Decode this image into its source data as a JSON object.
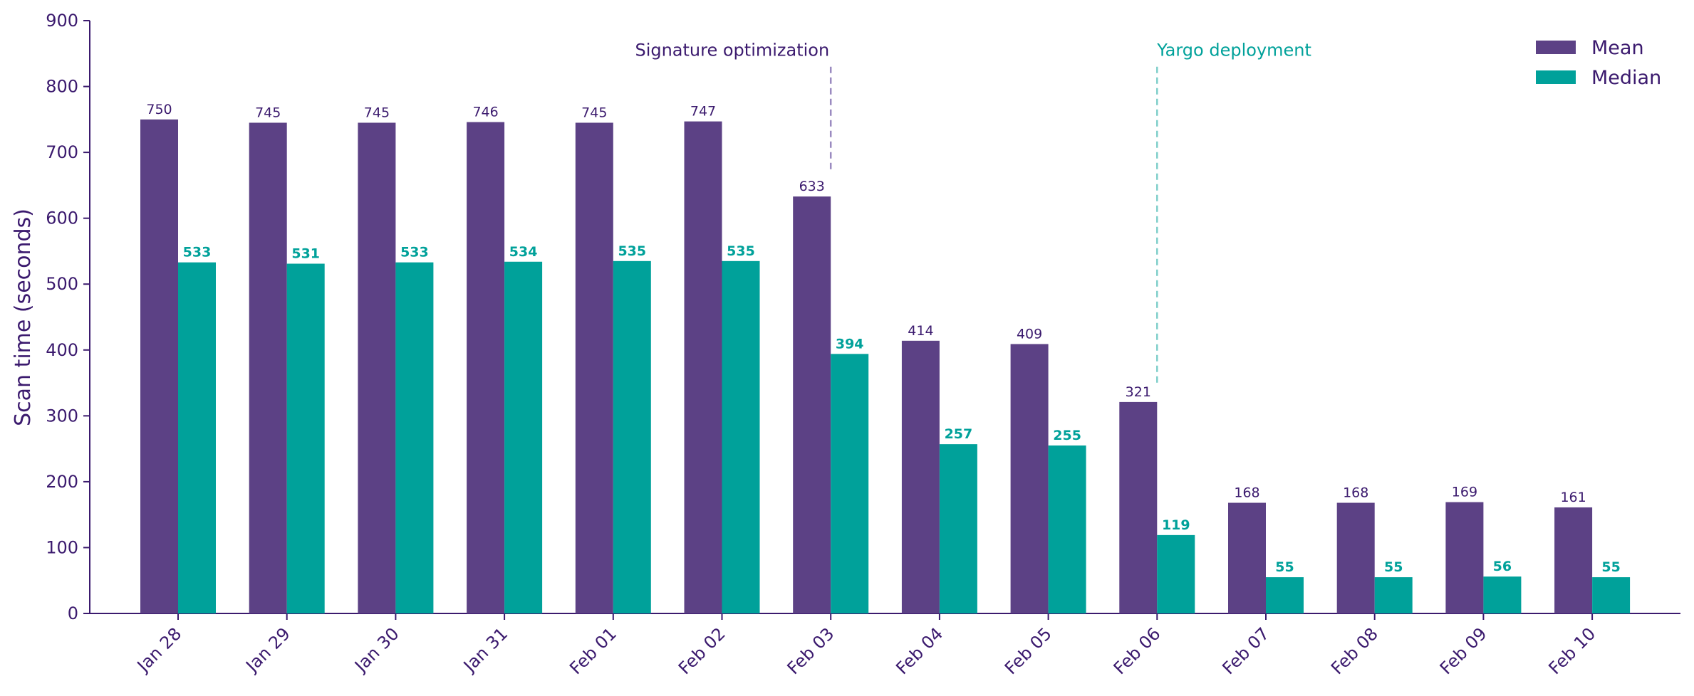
{
  "chart_data": {
    "type": "bar",
    "title": "",
    "xlabel": "",
    "ylabel": "Scan time (seconds)",
    "ylim": [
      0,
      900
    ],
    "yticks": [
      0,
      100,
      200,
      300,
      400,
      500,
      600,
      700,
      800,
      900
    ],
    "grid": false,
    "legend_position": "top-right",
    "categories": [
      "Jan 28",
      "Jan 29",
      "Jan 30",
      "Jan 31",
      "Feb 01",
      "Feb 02",
      "Feb 03",
      "Feb 04",
      "Feb 05",
      "Feb 06",
      "Feb 07",
      "Feb 08",
      "Feb 09",
      "Feb 10"
    ],
    "series": [
      {
        "name": "Mean",
        "color": "#5c4185",
        "values": [
          750,
          745,
          745,
          746,
          745,
          747,
          633,
          414,
          409,
          321,
          168,
          168,
          169,
          161
        ]
      },
      {
        "name": "Median",
        "color": "#00a19a",
        "values": [
          533,
          531,
          533,
          534,
          535,
          535,
          394,
          257,
          255,
          119,
          55,
          55,
          56,
          55
        ]
      }
    ],
    "annotations": [
      {
        "text": "Signature optimization",
        "category": "Feb 03",
        "color": "#3b1a6e",
        "line_color": "#9a8ac0",
        "line_style": "dashed"
      },
      {
        "text": "Yargo deployment",
        "category": "Feb 06",
        "color": "#00a19a",
        "line_color": "#7fcfca",
        "line_style": "dashed"
      }
    ]
  }
}
